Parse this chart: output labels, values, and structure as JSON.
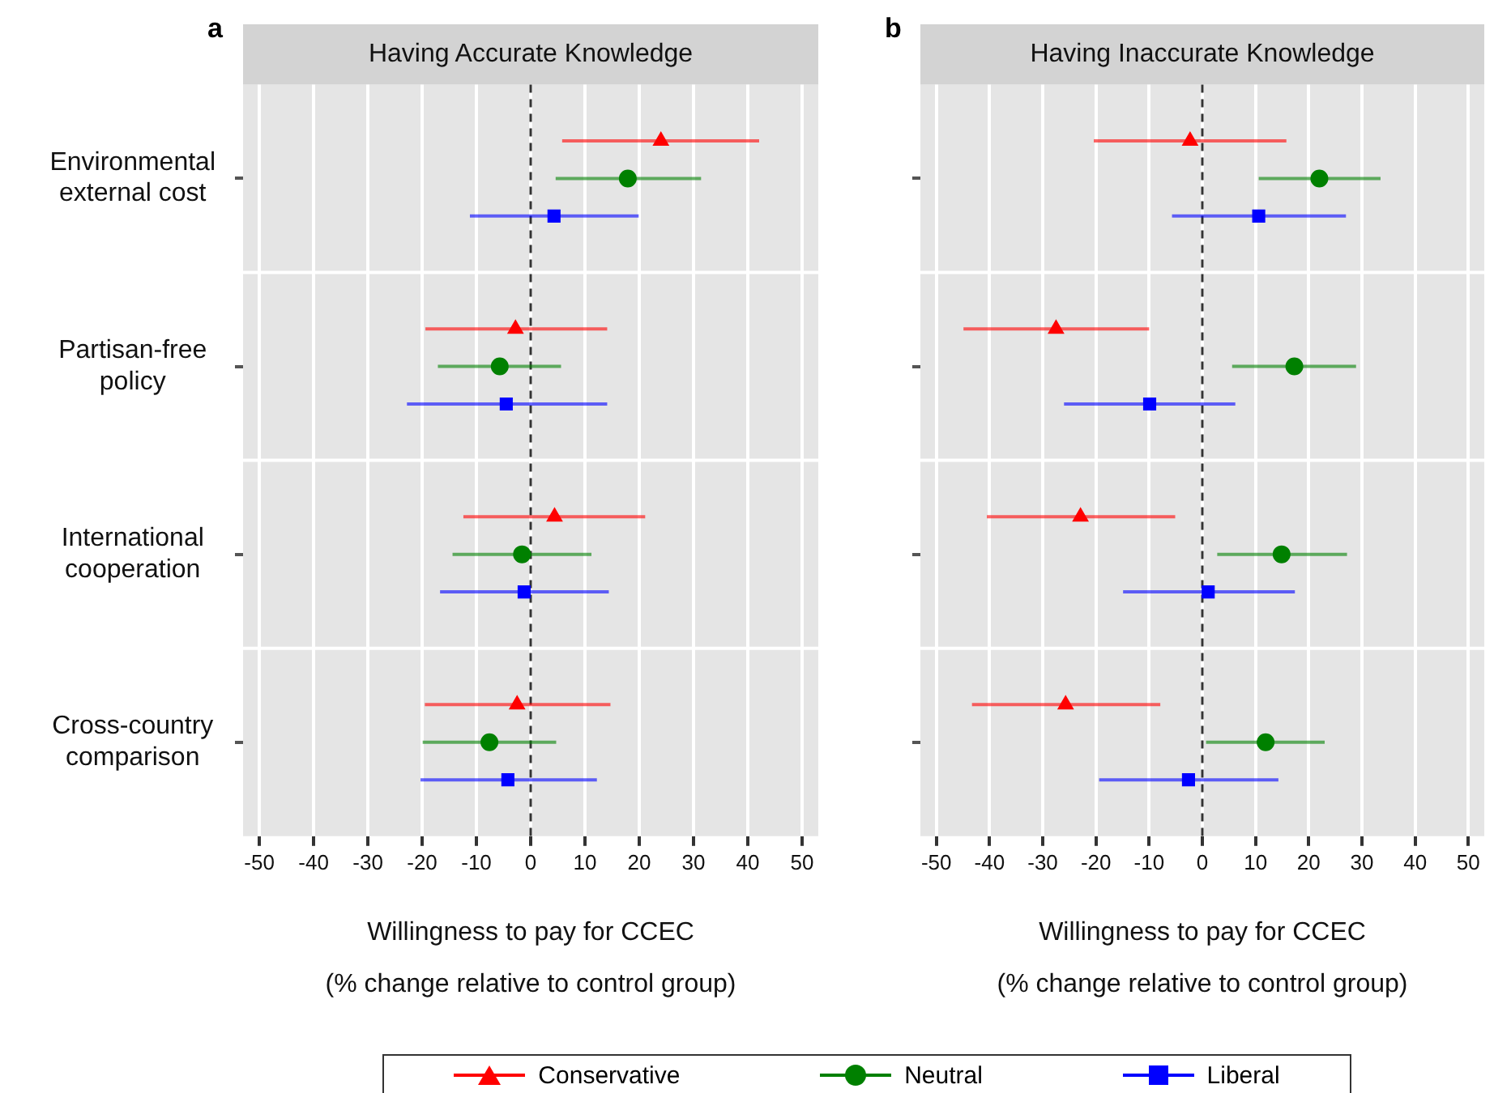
{
  "chart_data": [
    {
      "type": "scatter",
      "orientation": "horizontal",
      "title": "Having Accurate Knowledge",
      "annotations": [
        "a"
      ],
      "xlabel": "Willingness to pay for CCEC (% change relative to control group)",
      "categories": [
        "Environmental external cost",
        "Partisan-free policy",
        "International cooperation",
        "Cross-country comparison"
      ],
      "series": [
        {
          "name": "Conservative",
          "color": "#ff0000",
          "marker": "triangle",
          "values": [
            24.0,
            -2.8,
            4.4,
            -2.5
          ],
          "errors": [
            [
              5.8,
              42.1
            ],
            [
              -19.4,
              14.1
            ],
            [
              -12.4,
              21.1
            ],
            [
              -19.5,
              14.7
            ]
          ]
        },
        {
          "name": "Neutral",
          "color": "#008000",
          "marker": "circle",
          "values": [
            17.9,
            -5.7,
            -1.6,
            -7.6
          ],
          "errors": [
            [
              4.6,
              31.4
            ],
            [
              -17.1,
              5.6
            ],
            [
              -14.4,
              11.2
            ],
            [
              -19.9,
              4.7
            ]
          ]
        },
        {
          "name": "Liberal",
          "color": "#0000ff",
          "marker": "square",
          "values": [
            4.3,
            -4.5,
            -1.2,
            -4.2
          ],
          "errors": [
            [
              -11.2,
              19.9
            ],
            [
              -22.8,
              14.1
            ],
            [
              -16.7,
              14.4
            ],
            [
              -20.3,
              12.2
            ]
          ]
        }
      ],
      "xlim": [
        -53,
        53
      ],
      "xticks": [
        -50,
        -40,
        -30,
        -20,
        -10,
        0,
        10,
        20,
        30,
        40,
        50
      ],
      "grid": true,
      "legend": "bottom",
      "ref_lines": [
        {
          "axis": "x",
          "value": 0,
          "color": "#333333",
          "line_style": "dashed"
        }
      ]
    },
    {
      "type": "scatter",
      "orientation": "horizontal",
      "title": "Having Inaccurate Knowledge",
      "annotations": [
        "b"
      ],
      "xlabel": "Willingness to pay for CCEC (% change relative to control group)",
      "categories": [
        "Environmental external cost",
        "Partisan-free policy",
        "International cooperation",
        "Cross-country comparison"
      ],
      "series": [
        {
          "name": "Conservative",
          "color": "#ff0000",
          "marker": "triangle",
          "values": [
            -2.3,
            -27.5,
            -22.9,
            -25.7
          ],
          "errors": [
            [
              -20.4,
              15.8
            ],
            [
              -44.9,
              -10.0
            ],
            [
              -40.5,
              -5.1
            ],
            [
              -43.3,
              -7.9
            ]
          ]
        },
        {
          "name": "Neutral",
          "color": "#008000",
          "marker": "circle",
          "values": [
            22.0,
            17.3,
            14.9,
            11.9
          ],
          "errors": [
            [
              10.6,
              33.5
            ],
            [
              5.6,
              28.9
            ],
            [
              2.8,
              27.2
            ],
            [
              0.7,
              23.0
            ]
          ]
        },
        {
          "name": "Liberal",
          "color": "#0000ff",
          "marker": "square",
          "values": [
            10.6,
            -9.9,
            1.1,
            -2.6
          ],
          "errors": [
            [
              -5.7,
              27.0
            ],
            [
              -26.0,
              6.2
            ],
            [
              -14.9,
              17.4
            ],
            [
              -19.4,
              14.3
            ]
          ]
        }
      ],
      "xlim": [
        -53,
        53
      ],
      "xticks": [
        -50,
        -40,
        -30,
        -20,
        -10,
        0,
        10,
        20,
        30,
        40,
        50
      ],
      "grid": true,
      "tick_labels": "x",
      "ref_lines": [
        {
          "axis": "x",
          "value": 0,
          "color": "#333333",
          "line_style": "dashed"
        }
      ]
    }
  ]
}
